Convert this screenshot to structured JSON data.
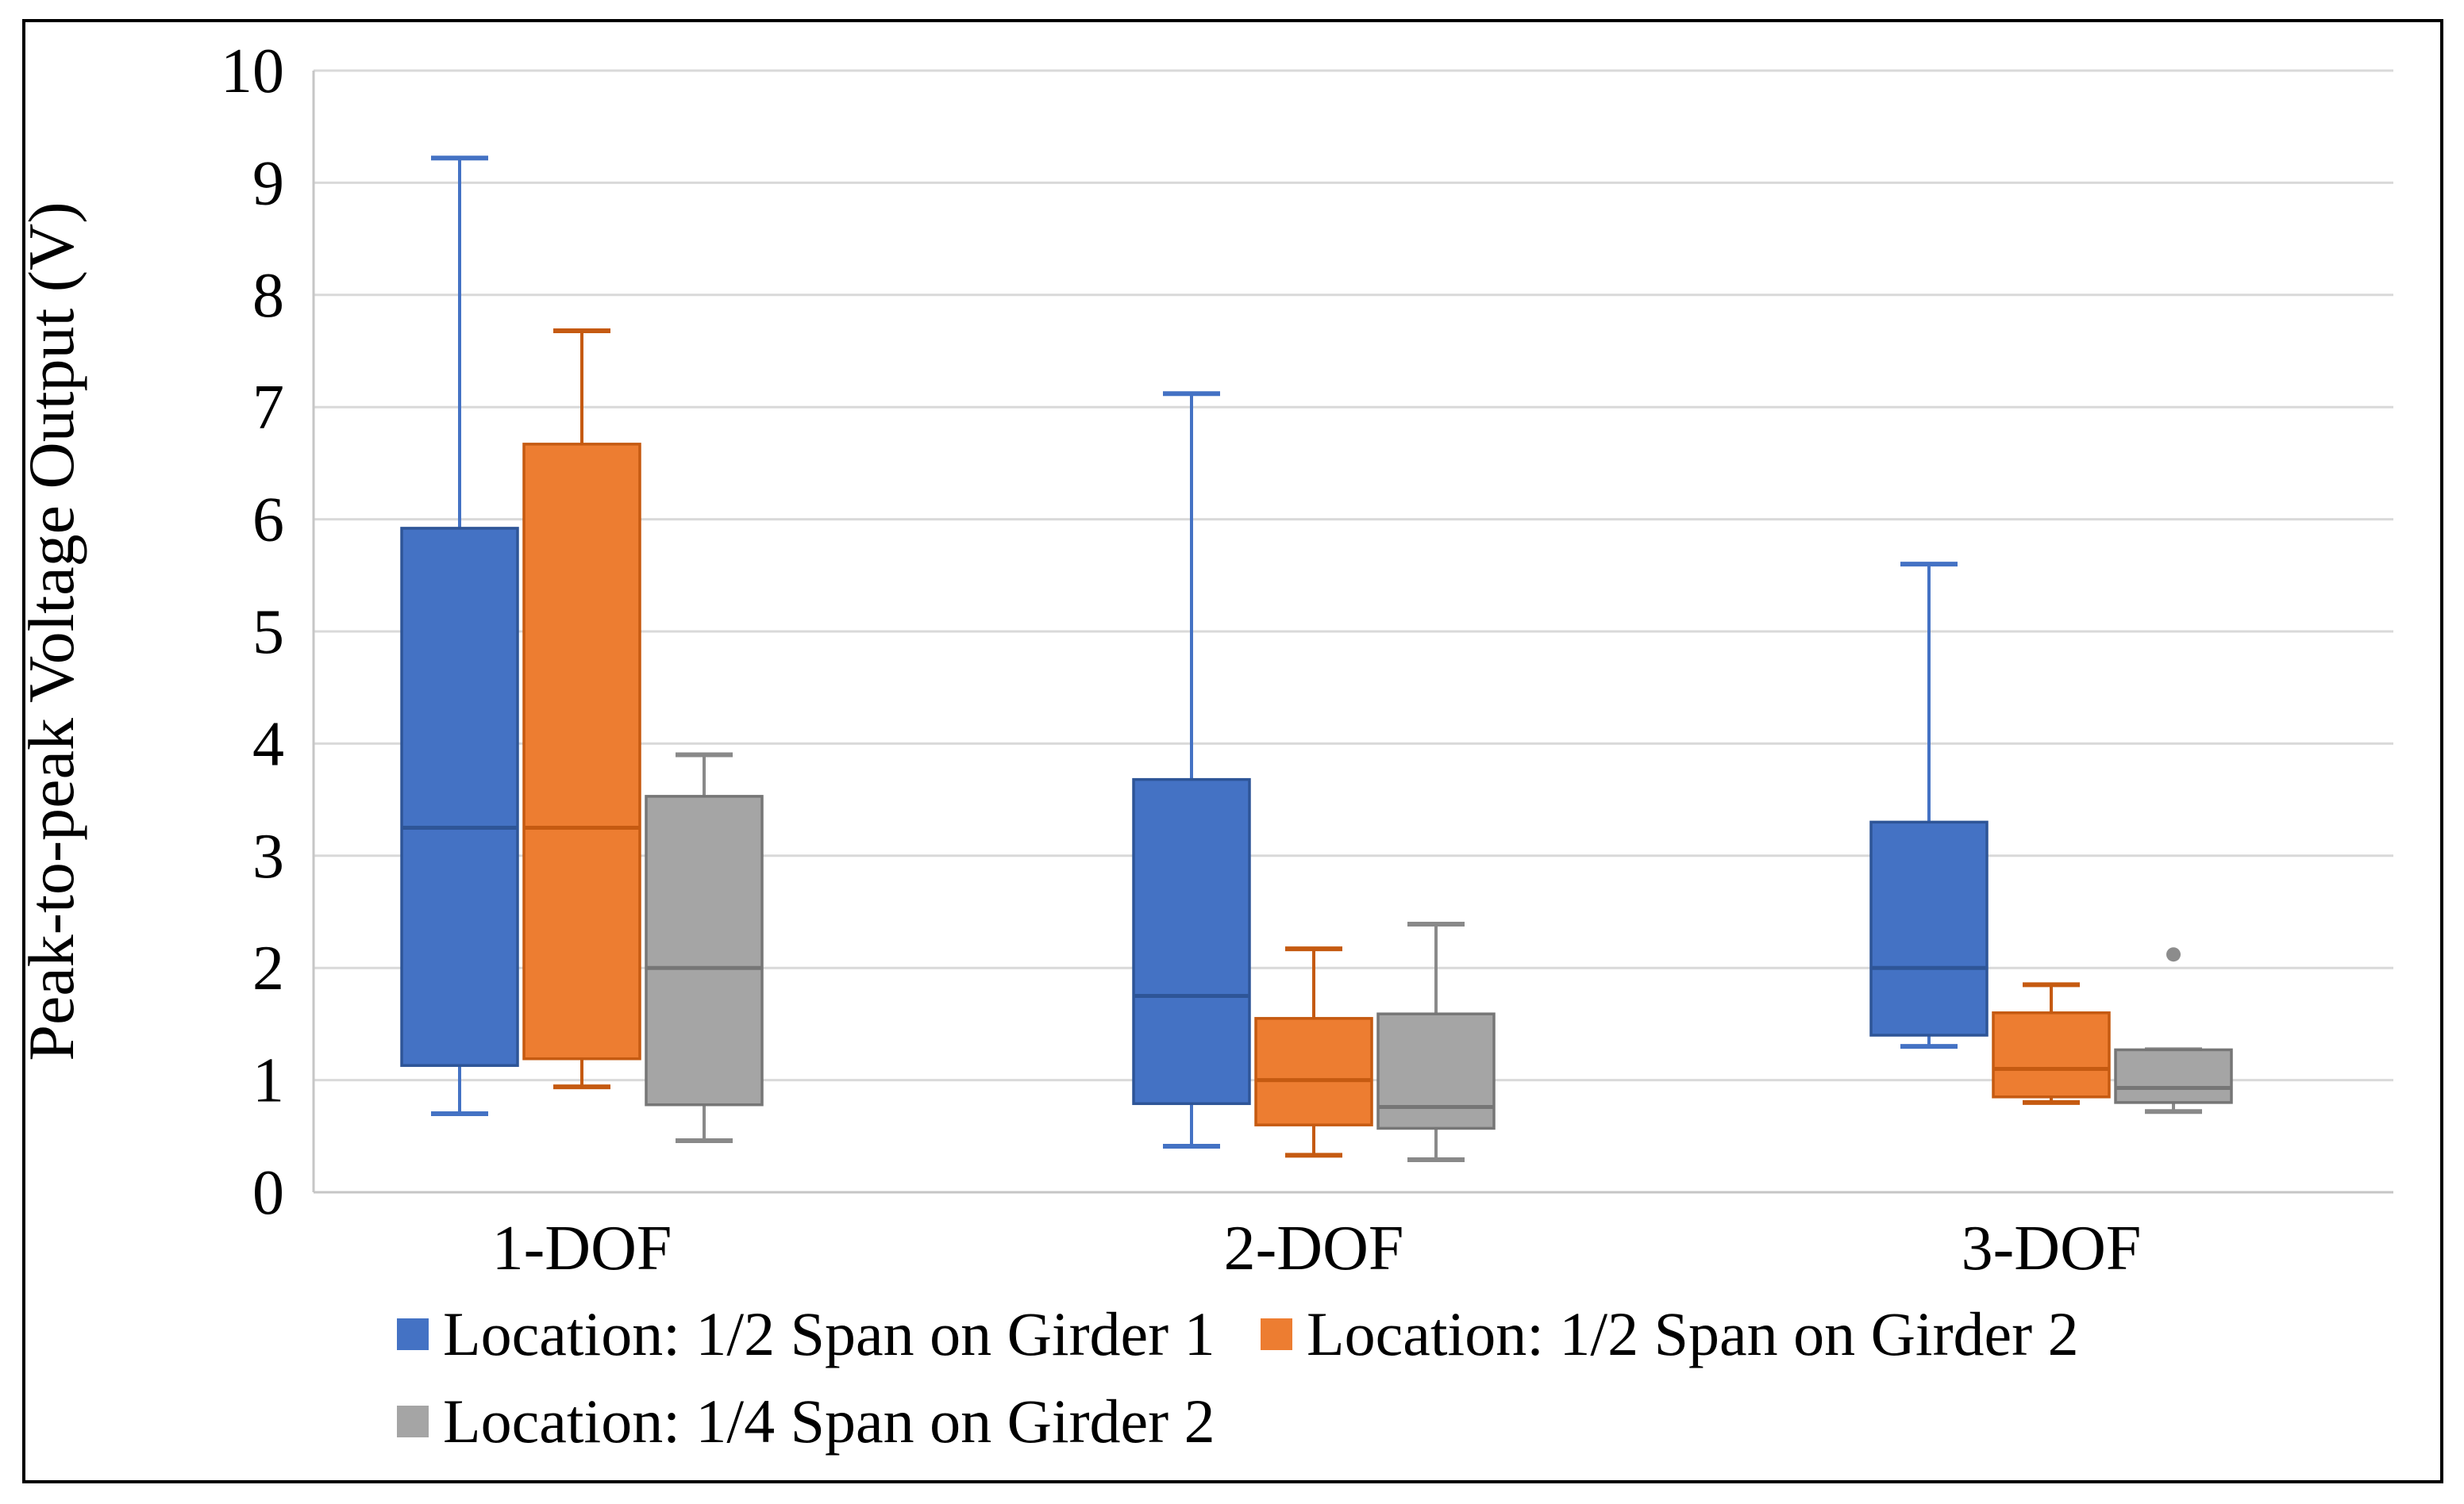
{
  "chart_data": {
    "type": "boxplot",
    "title": "",
    "ylabel": "Peak-to-peak Voltage Output (V)",
    "xlabel": "",
    "ylim": [
      0,
      10
    ],
    "yticks": [
      0,
      1,
      2,
      3,
      4,
      5,
      6,
      7,
      8,
      9,
      10
    ],
    "grid": true,
    "legend_position": "bottom",
    "categories": [
      "1-DOF",
      "2-DOF",
      "3-DOF"
    ],
    "series": [
      {
        "name": "Location: 1/2 Span on Girder 1",
        "color": "#4472C4",
        "edge_color": "#2E5597",
        "whisker_color": "#4472C4",
        "boxes": [
          {
            "category": "1-DOF",
            "min": 0.7,
            "q1": 1.13,
            "median": 3.25,
            "q3": 5.92,
            "max": 9.22,
            "outliers": []
          },
          {
            "category": "2-DOF",
            "min": 0.41,
            "q1": 0.79,
            "median": 1.75,
            "q3": 3.68,
            "max": 7.12,
            "outliers": []
          },
          {
            "category": "3-DOF",
            "min": 1.3,
            "q1": 1.4,
            "median": 2.0,
            "q3": 3.3,
            "max": 5.6,
            "outliers": []
          }
        ]
      },
      {
        "name": "Location: 1/2 Span on Girder 2",
        "color": "#ED7D31",
        "edge_color": "#C55A11",
        "whisker_color": "#C55A11",
        "boxes": [
          {
            "category": "1-DOF",
            "min": 0.94,
            "q1": 1.19,
            "median": 3.25,
            "q3": 6.67,
            "max": 7.68,
            "outliers": []
          },
          {
            "category": "2-DOF",
            "min": 0.33,
            "q1": 0.6,
            "median": 1.0,
            "q3": 1.55,
            "max": 2.17,
            "outliers": []
          },
          {
            "category": "3-DOF",
            "min": 0.8,
            "q1": 0.85,
            "median": 1.1,
            "q3": 1.6,
            "max": 1.85,
            "outliers": []
          }
        ]
      },
      {
        "name": "Location: 1/4 Span on Girder 2",
        "color": "#A5A5A5",
        "edge_color": "#767676",
        "whisker_color": "#898989",
        "boxes": [
          {
            "category": "1-DOF",
            "min": 0.46,
            "q1": 0.78,
            "median": 2.0,
            "q3": 3.53,
            "max": 3.9,
            "outliers": []
          },
          {
            "category": "2-DOF",
            "min": 0.29,
            "q1": 0.57,
            "median": 0.76,
            "q3": 1.59,
            "max": 2.39,
            "outliers": []
          },
          {
            "category": "3-DOF",
            "min": 0.72,
            "q1": 0.8,
            "median": 0.93,
            "q3": 1.27,
            "max": 1.27,
            "outliers": [
              2.12
            ]
          }
        ]
      }
    ]
  },
  "styles": {
    "gridline_color": "#D9D9D9",
    "axis_color": "#C6C6C6",
    "text_color": "#000000",
    "outlier_color": "#8C8C8C",
    "background": "#FFFFFF",
    "frame_color": "#000000"
  }
}
